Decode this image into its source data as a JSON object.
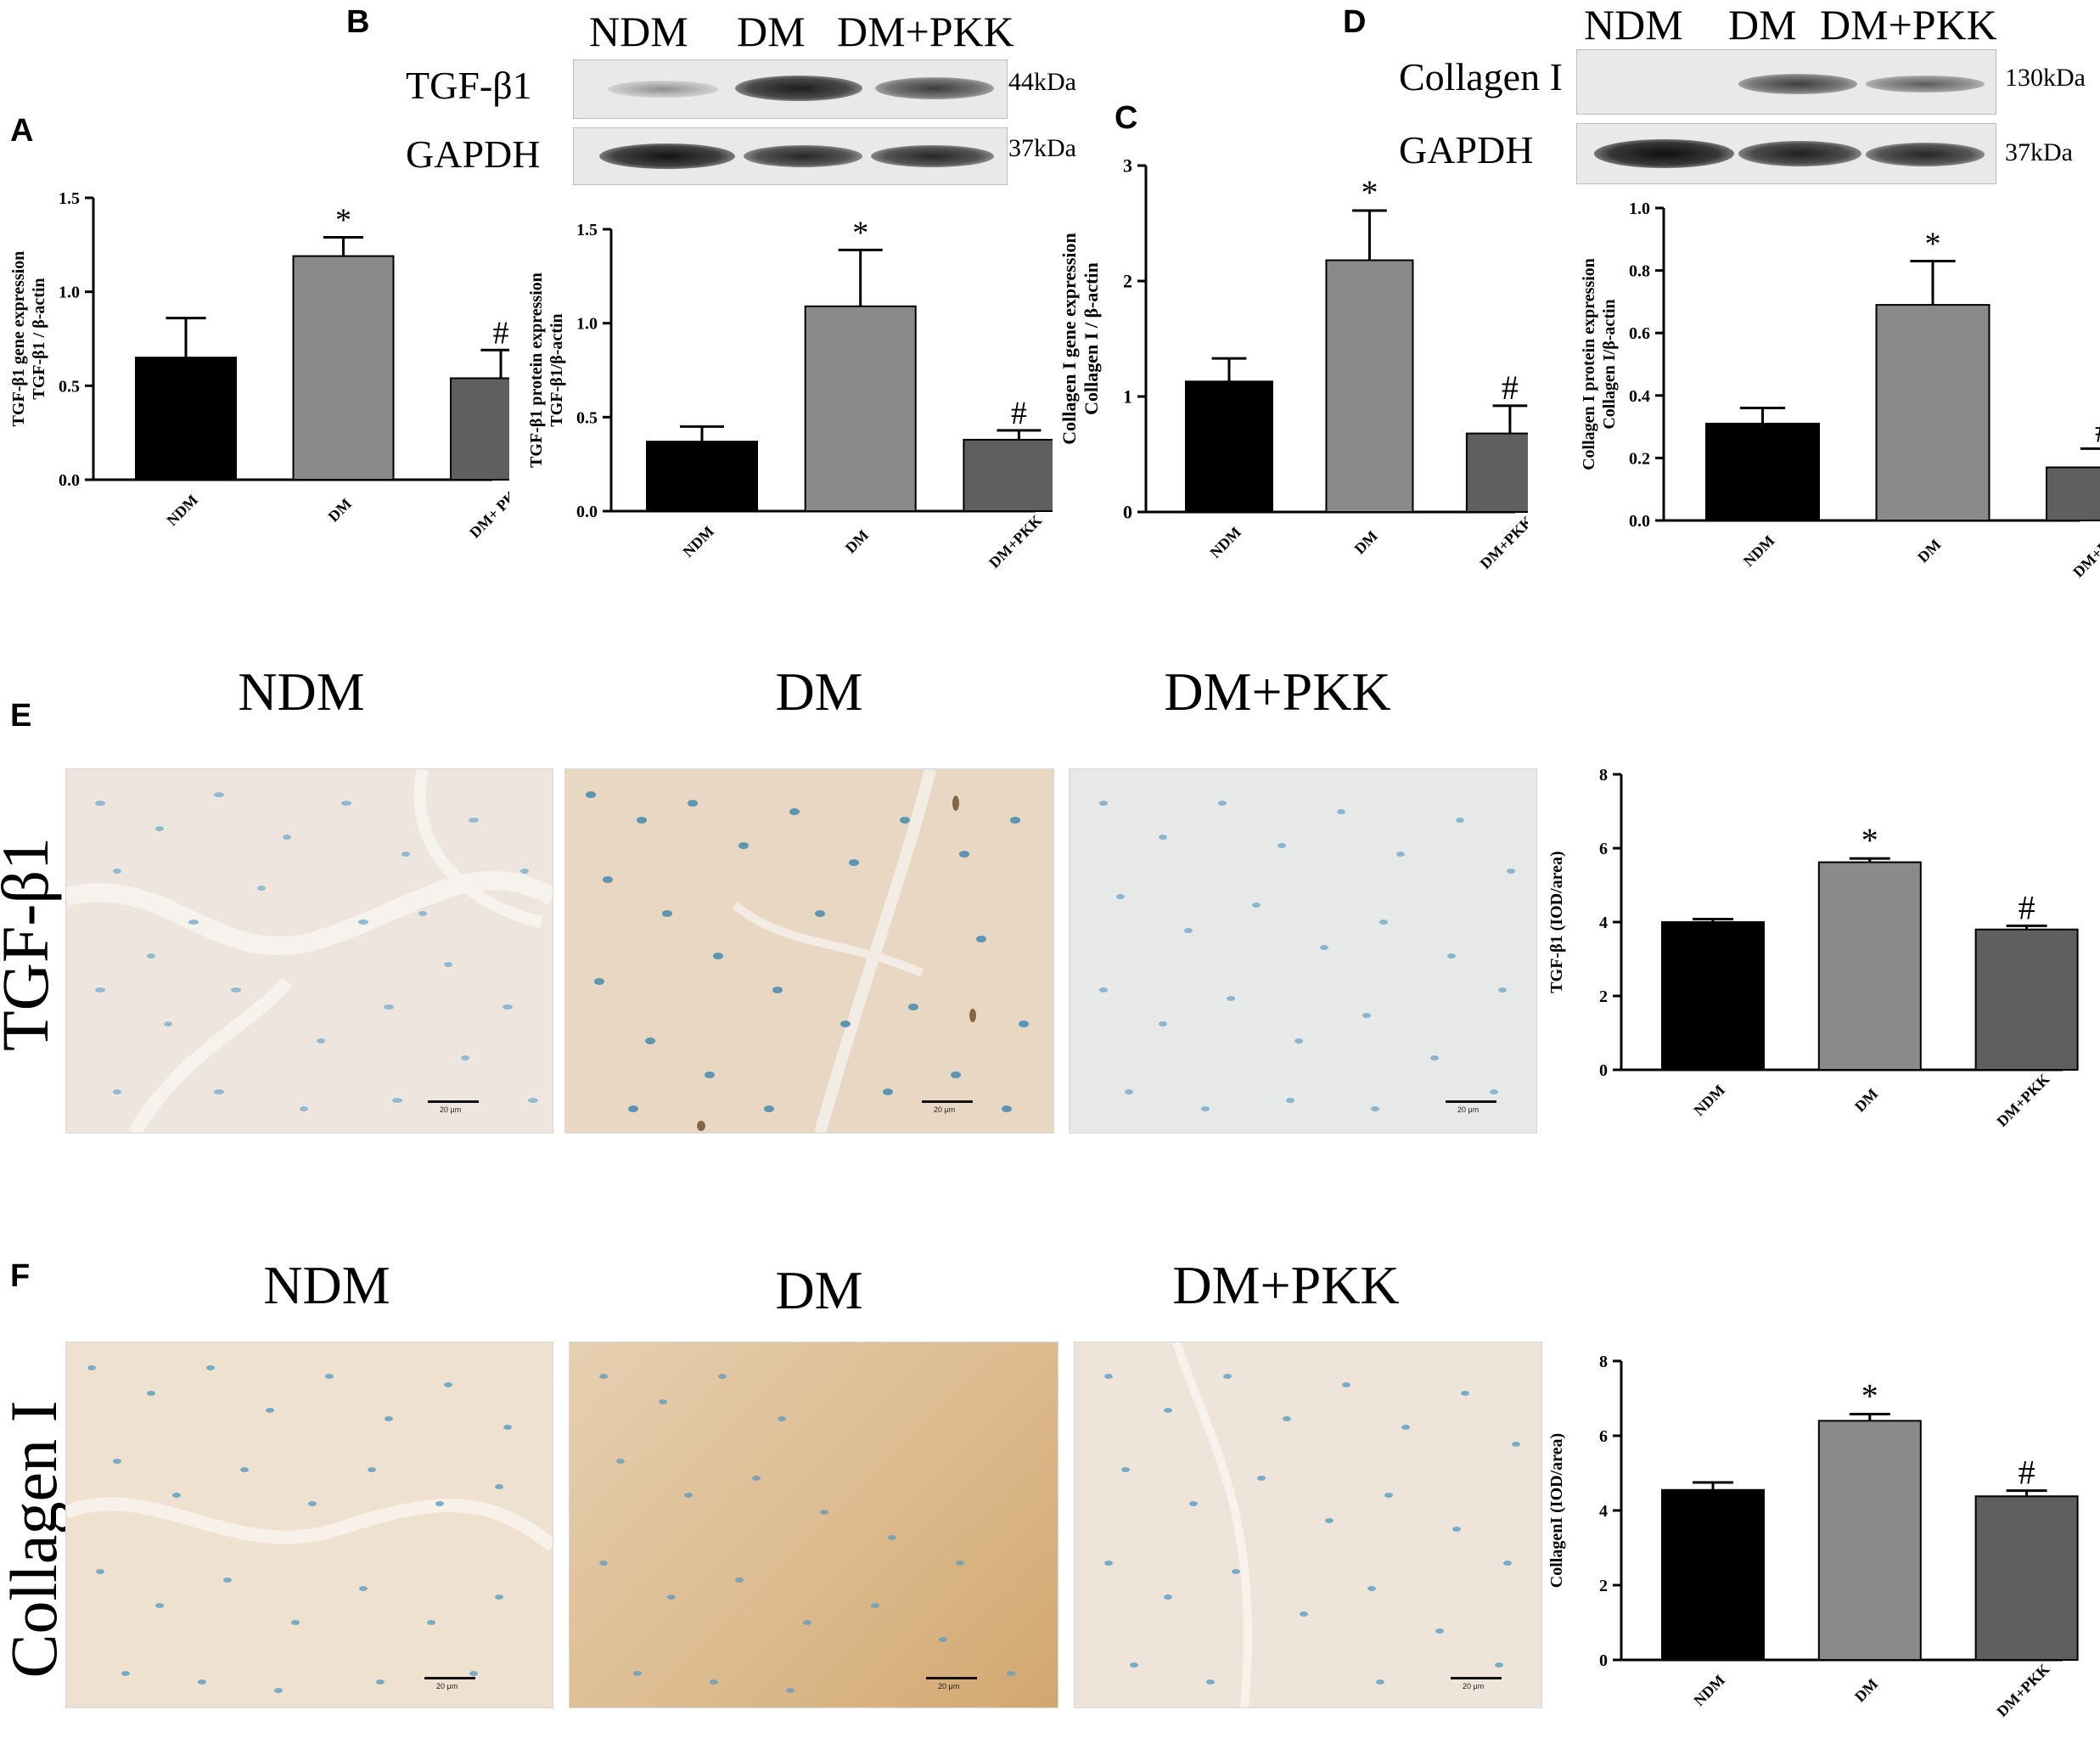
{
  "panels": {
    "A": "A",
    "B": "B",
    "C": "C",
    "D": "D",
    "E": "E",
    "F": "F"
  },
  "western_b": {
    "groups": [
      "NDM",
      "DM",
      "DM+PKK"
    ],
    "rows": [
      {
        "label": "TGF-β1",
        "kda": "44kDa"
      },
      {
        "label": "GAPDH",
        "kda": "37kDa"
      }
    ]
  },
  "western_d": {
    "groups": [
      "NDM",
      "DM",
      "DM+PKK"
    ],
    "rows": [
      {
        "label": "Collagen I",
        "kda": "130kDa"
      },
      {
        "label": "GAPDH",
        "kda": "37kDa"
      }
    ]
  },
  "ihc": {
    "columns": [
      "NDM",
      "DM",
      "DM+PKK"
    ],
    "rows": [
      "TGF-β1",
      "Collagen I"
    ],
    "scale_label": "20 μm"
  },
  "colors": {
    "ndm": "#000000",
    "dm": "#8a8a8a",
    "dmpkk": "#5f5f5f"
  },
  "chart_data": [
    {
      "id": "A",
      "type": "bar",
      "categories": [
        "NDM",
        "DM",
        "DM+ PKK"
      ],
      "values": [
        0.65,
        1.19,
        0.54
      ],
      "errors": [
        0.21,
        0.1,
        0.15
      ],
      "markers": [
        "",
        "*",
        "#"
      ],
      "ylabel": [
        "TGF-β1 gene expression",
        "TGF-β1 / β-actin"
      ],
      "ylim": [
        0,
        1.5
      ],
      "yticks": [
        0.0,
        0.5,
        1.0,
        1.5
      ],
      "ytick_labels": [
        "0.0",
        "0.5",
        "1.0",
        "1.5"
      ]
    },
    {
      "id": "B",
      "type": "bar",
      "categories": [
        "NDM",
        "DM",
        "DM+PKK"
      ],
      "values": [
        0.37,
        1.09,
        0.38
      ],
      "errors": [
        0.08,
        0.3,
        0.05
      ],
      "markers": [
        "",
        "*",
        "#"
      ],
      "ylabel": [
        "TGF-β1 protein expression",
        "TGF-β1/β-actin"
      ],
      "ylim": [
        0,
        1.5
      ],
      "yticks": [
        0.0,
        0.5,
        1.0,
        1.5
      ],
      "ytick_labels": [
        "0.0",
        "0.5",
        "1.0",
        "1.5"
      ]
    },
    {
      "id": "C",
      "type": "bar",
      "categories": [
        "NDM",
        "DM",
        "DM+PKK"
      ],
      "values": [
        1.13,
        2.18,
        0.68
      ],
      "errors": [
        0.2,
        0.43,
        0.24
      ],
      "markers": [
        "",
        "*",
        "#"
      ],
      "ylabel": [
        "Collagen I gene expression",
        "Collagen I / β-actin"
      ],
      "ylim": [
        0,
        3
      ],
      "yticks": [
        0,
        1,
        2,
        3
      ],
      "ytick_labels": [
        "0",
        "1",
        "2",
        "3"
      ]
    },
    {
      "id": "D",
      "type": "bar",
      "categories": [
        "NDM",
        "DM",
        "DM+PKK"
      ],
      "values": [
        0.31,
        0.69,
        0.17
      ],
      "errors": [
        0.05,
        0.14,
        0.06
      ],
      "markers": [
        "",
        "*",
        "#"
      ],
      "ylabel": [
        "Collagen I protein expression",
        "Collagen I/β-actin"
      ],
      "ylim": [
        0,
        1.0
      ],
      "yticks": [
        0.0,
        0.2,
        0.4,
        0.6,
        0.8,
        1.0
      ],
      "ytick_labels": [
        "0.0",
        "0.2",
        "0.4",
        "0.6",
        "0.8",
        "1.0"
      ]
    },
    {
      "id": "E",
      "type": "bar",
      "categories": [
        "NDM",
        "DM",
        "DM+PKK"
      ],
      "values": [
        4.0,
        5.62,
        3.8
      ],
      "errors": [
        0.08,
        0.1,
        0.1
      ],
      "markers": [
        "",
        "*",
        "#"
      ],
      "ylabel": [
        "TGF-β1 (IOD/area)"
      ],
      "ylim": [
        0,
        8
      ],
      "yticks": [
        0,
        2,
        4,
        6,
        8
      ],
      "ytick_labels": [
        "0",
        "2",
        "4",
        "6",
        "8"
      ]
    },
    {
      "id": "F",
      "type": "bar",
      "categories": [
        "NDM",
        "DM",
        "DM+PKK"
      ],
      "values": [
        4.55,
        6.4,
        4.38
      ],
      "errors": [
        0.2,
        0.18,
        0.15
      ],
      "markers": [
        "",
        "*",
        "#"
      ],
      "ylabel": [
        "CollagenI (IOD/area)"
      ],
      "ylim": [
        0,
        8
      ],
      "yticks": [
        0,
        2,
        4,
        6,
        8
      ],
      "ytick_labels": [
        "0",
        "2",
        "4",
        "6",
        "8"
      ]
    }
  ]
}
